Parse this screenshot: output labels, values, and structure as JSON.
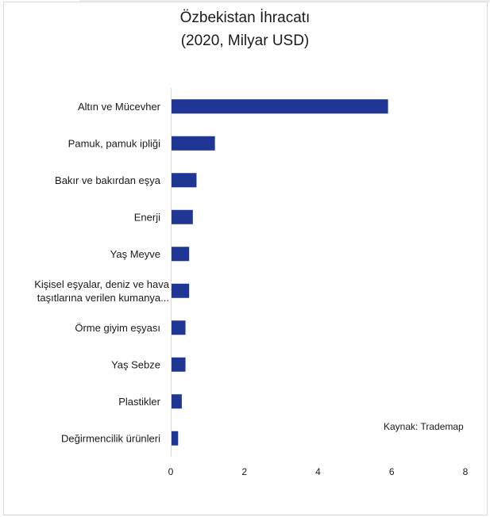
{
  "chart_data": {
    "type": "bar",
    "orientation": "horizontal",
    "title": "Özbekistan İhracatı",
    "subtitle": "(2020, Milyar USD)",
    "categories": [
      "Altın ve Mücevher",
      "Pamuk, pamuk ipliği",
      "Bakır ve bakırdan eşya",
      "Enerji",
      "Yaş Meyve",
      "Kişisel eşyalar, deniz ve hava taşıtlarına verilen kumanya...",
      "Örme giyim eşyası",
      "Yaş Sebze",
      "Plastikler",
      "Değirmencilik ürünleri"
    ],
    "values": [
      5.9,
      1.2,
      0.7,
      0.6,
      0.5,
      0.5,
      0.4,
      0.4,
      0.3,
      0.2
    ],
    "xlim": [
      0,
      8
    ],
    "xticks": [
      "0",
      "2",
      "4",
      "6",
      "8"
    ],
    "grid": false,
    "bar_color": "#1f3694",
    "source_note": "Kaynak: Trademap"
  }
}
